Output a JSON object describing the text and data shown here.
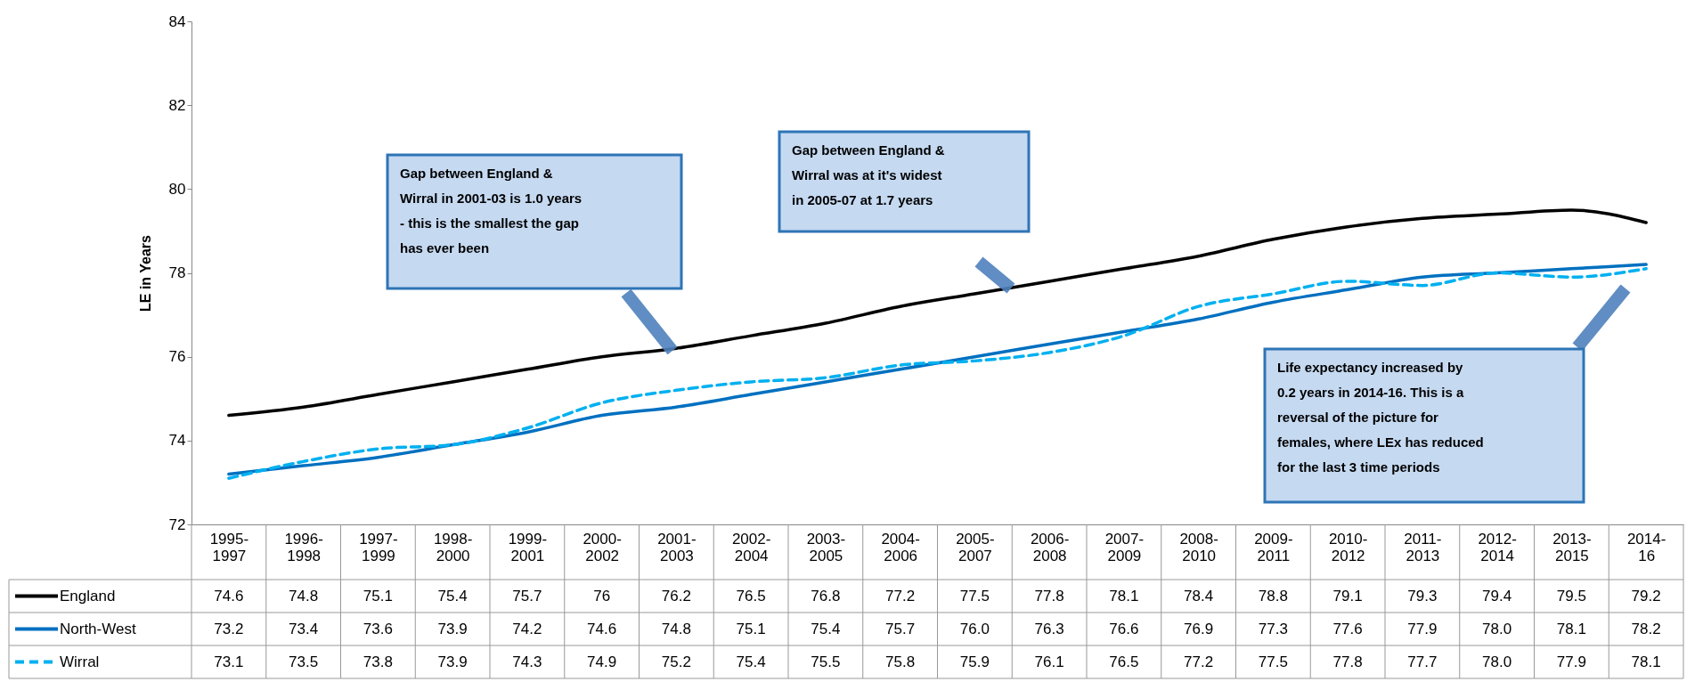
{
  "chart_data": {
    "type": "line",
    "ylabel": "LE in Years",
    "categories": [
      "1995-1997",
      "1996-1998",
      "1997-1999",
      "1998-2000",
      "1999-2001",
      "2000-2002",
      "2001-2003",
      "2002-2004",
      "2003-2005",
      "2004-2006",
      "2005-2007",
      "2006-2008",
      "2007-2009",
      "2008-2010",
      "2009-2011",
      "2010-2012",
      "2011-2013",
      "2012-2014",
      "2013-2015",
      "2014-16"
    ],
    "series": [
      {
        "name": "England",
        "color": "#000000",
        "line_style": "solid",
        "values": [
          74.6,
          74.8,
          75.1,
          75.4,
          75.7,
          76,
          76.2,
          76.5,
          76.8,
          77.2,
          77.5,
          77.8,
          78.1,
          78.4,
          78.8,
          79.1,
          79.3,
          79.4,
          79.5,
          79.2
        ],
        "value_labels": [
          "74.6",
          "74.8",
          "75.1",
          "75.4",
          "75.7",
          "76",
          "76.2",
          "76.5",
          "76.8",
          "77.2",
          "77.5",
          "77.8",
          "78.1",
          "78.4",
          "78.8",
          "79.1",
          "79.3",
          "79.4",
          "79.5",
          "79.2"
        ]
      },
      {
        "name": "North-West",
        "color": "#0070c0",
        "line_style": "solid",
        "values": [
          73.2,
          73.4,
          73.6,
          73.9,
          74.2,
          74.6,
          74.8,
          75.1,
          75.4,
          75.7,
          76.0,
          76.3,
          76.6,
          76.9,
          77.3,
          77.6,
          77.9,
          78.0,
          78.1,
          78.2
        ],
        "value_labels": [
          "73.2",
          "73.4",
          "73.6",
          "73.9",
          "74.2",
          "74.6",
          "74.8",
          "75.1",
          "75.4",
          "75.7",
          "76.0",
          "76.3",
          "76.6",
          "76.9",
          "77.3",
          "77.6",
          "77.9",
          "78.0",
          "78.1",
          "78.2"
        ]
      },
      {
        "name": "Wirral",
        "color": "#00b0f0",
        "line_style": "dashed",
        "values": [
          73.1,
          73.5,
          73.8,
          73.9,
          74.3,
          74.9,
          75.2,
          75.4,
          75.5,
          75.8,
          75.9,
          76.1,
          76.5,
          77.2,
          77.5,
          77.8,
          77.7,
          78.0,
          77.9,
          78.1
        ],
        "value_labels": [
          "73.1",
          "73.5",
          "73.8",
          "73.9",
          "74.3",
          "74.9",
          "75.2",
          "75.4",
          "75.5",
          "75.8",
          "75.9",
          "76.1",
          "76.5",
          "77.2",
          "77.5",
          "77.8",
          "77.7",
          "78.0",
          "77.9",
          "78.1"
        ]
      }
    ],
    "ylim": [
      72,
      84
    ],
    "yticks": [
      72,
      74,
      76,
      78,
      80,
      82,
      84
    ],
    "grid": false,
    "legend": "bottom",
    "annotations": [
      "Gap between England &\nWirral in 2001-03 is 1.0 years\n- this is the smallest the gap\nhas ever been",
      "Gap between England &\nWirral was at it's widest\nin 2005-07 at 1.7 years",
      "Life expectancy increased by\n0.2 years in 2014-16.  This is a\nreversal of the picture for\nfemales, where LEx has reduced\nfor the last 3 time periods"
    ]
  }
}
